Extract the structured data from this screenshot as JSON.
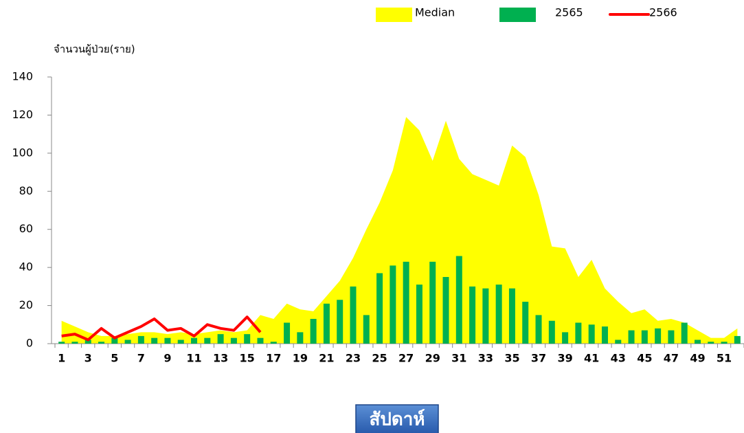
{
  "chart_data": {
    "type": "combo",
    "y_axis_label": "จำนวนผู้ป่วย(ราย)",
    "x_axis_label": "สัปดาห์",
    "categories": [
      1,
      null,
      3,
      null,
      5,
      null,
      7,
      null,
      9,
      null,
      11,
      null,
      13,
      null,
      15,
      null,
      17,
      null,
      19,
      null,
      21,
      null,
      23,
      null,
      25,
      null,
      27,
      null,
      29,
      null,
      31,
      null,
      33,
      null,
      35,
      null,
      37,
      null,
      39,
      null,
      41,
      null,
      43,
      null,
      45,
      null,
      47,
      null,
      49,
      null,
      51,
      null
    ],
    "series": [
      {
        "name": "Median",
        "kind": "area",
        "color": "#ffff00",
        "values": [
          12,
          9,
          6,
          4,
          4,
          5,
          6,
          6,
          5,
          6,
          5,
          6,
          7,
          6,
          7,
          15,
          13,
          21,
          18,
          17,
          25,
          33,
          45,
          60,
          74,
          91,
          119,
          112,
          96,
          117,
          97,
          89,
          86,
          83,
          104,
          98,
          78,
          51,
          50,
          35,
          44,
          29,
          22,
          16,
          18,
          12,
          13,
          11,
          7,
          3,
          3,
          8
        ]
      },
      {
        "name": "2565",
        "kind": "bar",
        "color": "#00b050",
        "values": [
          1,
          1,
          2,
          1,
          3,
          2,
          4,
          3,
          3,
          2,
          3,
          3,
          5,
          3,
          5,
          3,
          1,
          11,
          6,
          13,
          21,
          23,
          30,
          15,
          37,
          41,
          43,
          31,
          43,
          35,
          46,
          30,
          29,
          31,
          29,
          22,
          15,
          12,
          6,
          11,
          10,
          9,
          2,
          7,
          7,
          8,
          7,
          11,
          2,
          1,
          1,
          4
        ]
      },
      {
        "name": "2566",
        "kind": "line",
        "color": "#ff0000",
        "values": [
          4,
          5,
          2,
          8,
          3,
          6,
          9,
          13,
          7,
          8,
          4,
          10,
          8,
          7,
          14,
          6,
          null,
          null,
          null,
          null,
          null,
          null,
          null,
          null,
          null,
          null,
          null,
          null,
          null,
          null,
          null,
          null,
          null,
          null,
          null,
          null,
          null,
          null,
          null,
          null,
          null,
          null,
          null,
          null,
          null,
          null,
          null,
          null,
          null,
          null,
          null,
          null
        ]
      }
    ],
    "ylim": [
      0,
      140
    ],
    "yticks": [
      0,
      20,
      40,
      60,
      80,
      100,
      120,
      140
    ]
  }
}
